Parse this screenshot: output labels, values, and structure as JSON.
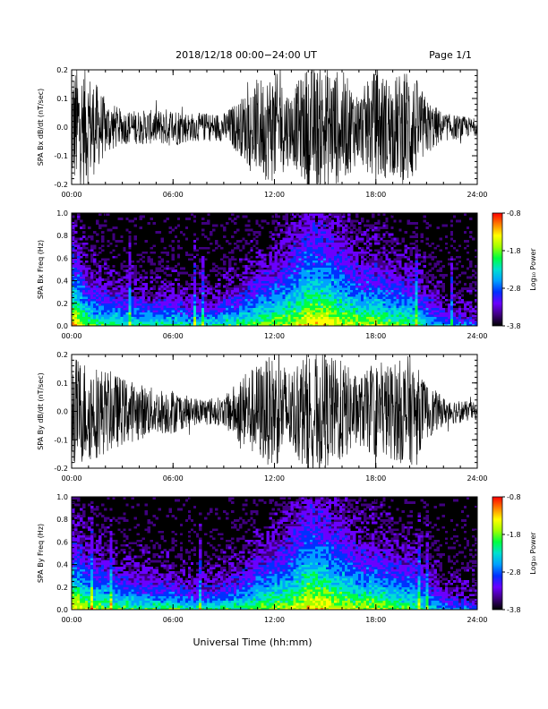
{
  "header": {
    "title": "2018/12/18   00:00−24:00 UT",
    "page_label": "Page 1/1"
  },
  "footer": {
    "xlabel": "Universal Time (hh:mm)"
  },
  "chart_data": [
    {
      "type": "line",
      "ylabel": "SPA Bx dB/dt (nT/sec)",
      "xlabel": "",
      "xlim": [
        0,
        24
      ],
      "ylim": [
        -0.2,
        0.2
      ],
      "x_tick_labels": [
        "00:00",
        "06:00",
        "12:00",
        "18:00",
        "24:00"
      ],
      "y_tick_labels": [
        "-0.2",
        "-0.1",
        "0.0",
        "0.1",
        "0.2"
      ],
      "line_color": "#000000",
      "amplitude_envelope": {
        "x_hours": [
          0,
          1,
          2,
          3,
          4,
          5,
          6,
          7,
          8,
          9,
          10,
          11,
          12,
          13,
          14,
          15,
          16,
          17,
          18,
          19,
          20,
          21,
          22,
          23,
          24
        ],
        "half_range": [
          0.22,
          0.2,
          0.1,
          0.06,
          0.06,
          0.06,
          0.07,
          0.05,
          0.05,
          0.05,
          0.1,
          0.17,
          0.2,
          0.12,
          0.22,
          0.21,
          0.2,
          0.12,
          0.2,
          0.17,
          0.22,
          0.1,
          0.05,
          0.04,
          0.03
        ]
      }
    },
    {
      "type": "heatmap",
      "ylabel": "SPA Bx Freq (Hz)",
      "xlabel": "",
      "xlim": [
        0,
        24
      ],
      "ylim": [
        0.0,
        1.0
      ],
      "x_tick_labels": [
        "00:00",
        "06:00",
        "12:00",
        "18:00",
        "24:00"
      ],
      "y_tick_labels": [
        "0.0",
        "0.2",
        "0.4",
        "0.6",
        "0.8",
        "1.0"
      ],
      "colorbar": {
        "label": "Log₁₀ Power",
        "range": [
          -3.8,
          -0.8
        ],
        "tick_labels": [
          "-0.8",
          "-1.8",
          "-2.8",
          "-3.8"
        ],
        "colors": [
          "#000000",
          "#400080",
          "#6a00ff",
          "#0030ff",
          "#00a0ff",
          "#00e0d0",
          "#00ff40",
          "#a0ff00",
          "#ffff00",
          "#ff8000",
          "#ff0000"
        ]
      },
      "power_profile": {
        "x_hours": [
          0,
          1,
          2,
          3,
          4,
          5,
          6,
          7,
          8,
          9,
          10,
          11,
          12,
          13,
          14,
          15,
          16,
          17,
          18,
          19,
          20,
          21,
          22,
          23,
          24
        ],
        "low_freq_level": [
          0.8,
          0.55,
          0.5,
          0.5,
          0.5,
          0.45,
          0.5,
          0.45,
          0.45,
          0.5,
          0.5,
          0.55,
          0.6,
          0.62,
          0.72,
          0.72,
          0.66,
          0.6,
          0.62,
          0.55,
          0.52,
          0.4,
          0.32,
          0.3,
          0.3
        ],
        "band_reach_hz": [
          0.45,
          0.25,
          0.2,
          0.18,
          0.15,
          0.15,
          0.15,
          0.12,
          0.12,
          0.15,
          0.2,
          0.3,
          0.35,
          0.45,
          0.6,
          0.55,
          0.45,
          0.35,
          0.35,
          0.3,
          0.3,
          0.2,
          0.1,
          0.08,
          0.05
        ]
      }
    },
    {
      "type": "line",
      "ylabel": "SPA By dB/dt (nT/sec)",
      "xlabel": "",
      "xlim": [
        0,
        24
      ],
      "ylim": [
        -0.2,
        0.2
      ],
      "x_tick_labels": [
        "00:00",
        "06:00",
        "12:00",
        "18:00",
        "24:00"
      ],
      "y_tick_labels": [
        "-0.2",
        "-0.1",
        "0.0",
        "0.1",
        "0.2"
      ],
      "line_color": "#000000",
      "amplitude_envelope": {
        "x_hours": [
          0,
          1,
          2,
          3,
          4,
          5,
          6,
          7,
          8,
          9,
          10,
          11,
          12,
          13,
          14,
          15,
          16,
          17,
          18,
          19,
          20,
          21,
          22,
          23,
          24
        ],
        "half_range": [
          0.2,
          0.18,
          0.15,
          0.12,
          0.1,
          0.08,
          0.08,
          0.05,
          0.05,
          0.05,
          0.12,
          0.17,
          0.2,
          0.15,
          0.22,
          0.2,
          0.18,
          0.12,
          0.17,
          0.17,
          0.2,
          0.1,
          0.05,
          0.04,
          0.03
        ]
      }
    },
    {
      "type": "heatmap",
      "ylabel": "SPA By Freq (Hz)",
      "xlabel": "",
      "xlim": [
        0,
        24
      ],
      "ylim": [
        0.0,
        1.0
      ],
      "x_tick_labels": [
        "00:00",
        "06:00",
        "12:00",
        "18:00",
        "24:00"
      ],
      "y_tick_labels": [
        "0.0",
        "0.2",
        "0.4",
        "0.6",
        "0.8",
        "1.0"
      ],
      "colorbar": {
        "label": "Log₁₀ Power",
        "range": [
          -3.8,
          -0.8
        ],
        "tick_labels": [
          "-0.8",
          "-1.8",
          "-2.8",
          "-3.8"
        ],
        "colors": [
          "#000000",
          "#400080",
          "#6a00ff",
          "#0030ff",
          "#00a0ff",
          "#00e0d0",
          "#00ff40",
          "#a0ff00",
          "#ffff00",
          "#ff8000",
          "#ff0000"
        ]
      },
      "power_profile": {
        "x_hours": [
          0,
          1,
          2,
          3,
          4,
          5,
          6,
          7,
          8,
          9,
          10,
          11,
          12,
          13,
          14,
          15,
          16,
          17,
          18,
          19,
          20,
          21,
          22,
          23,
          24
        ],
        "low_freq_level": [
          0.75,
          0.6,
          0.55,
          0.55,
          0.5,
          0.5,
          0.55,
          0.45,
          0.45,
          0.5,
          0.5,
          0.55,
          0.6,
          0.62,
          0.72,
          0.7,
          0.66,
          0.62,
          0.62,
          0.55,
          0.52,
          0.42,
          0.32,
          0.3,
          0.3
        ],
        "band_reach_hz": [
          0.4,
          0.3,
          0.25,
          0.2,
          0.18,
          0.15,
          0.15,
          0.12,
          0.12,
          0.15,
          0.2,
          0.3,
          0.35,
          0.45,
          0.6,
          0.55,
          0.45,
          0.35,
          0.35,
          0.3,
          0.3,
          0.2,
          0.1,
          0.08,
          0.05
        ]
      }
    }
  ]
}
